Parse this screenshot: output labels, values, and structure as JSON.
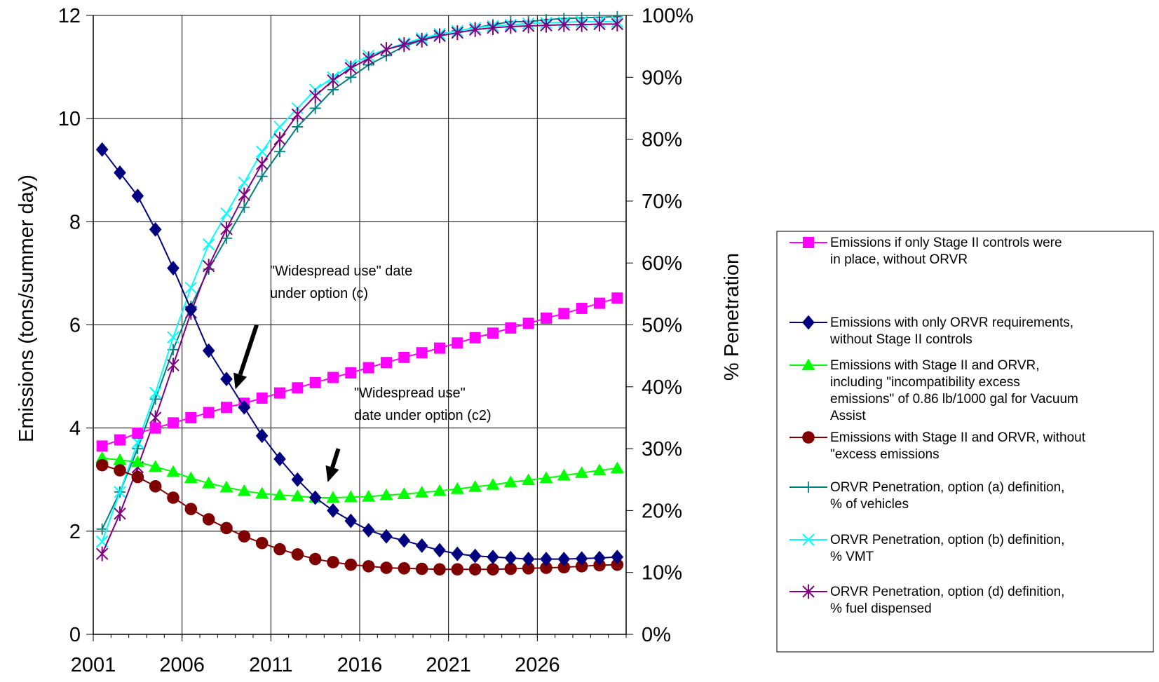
{
  "chart_data": {
    "type": "line",
    "title": "",
    "ylabel": "Emissions (tons/summer day)",
    "ylabel_right": "% Penetration",
    "xlim": [
      2001,
      2031
    ],
    "ylim": [
      0,
      12
    ],
    "ylim_right": [
      0,
      100
    ],
    "x_ticks": [
      "2001",
      "2006",
      "2011",
      "2016",
      "2021",
      "2026"
    ],
    "y_ticks": [
      "0",
      "2",
      "4",
      "6",
      "8",
      "10",
      "12"
    ],
    "y_ticks_right": [
      "0%",
      "10%",
      "20%",
      "30%",
      "40%",
      "50%",
      "60%",
      "70%",
      "80%",
      "90%",
      "100%"
    ],
    "grid": "horizontal and vertical",
    "legend_position": "right",
    "x": [
      2001,
      2002,
      2003,
      2004,
      2005,
      2006,
      2007,
      2008,
      2009,
      2010,
      2011,
      2012,
      2013,
      2014,
      2015,
      2016,
      2017,
      2018,
      2019,
      2020,
      2021,
      2022,
      2023,
      2024,
      2025,
      2026,
      2027,
      2028,
      2029,
      2030
    ],
    "series": [
      {
        "name": "Emissions if only Stage II controls were in place, without ORVR",
        "axis": "left",
        "color": "#ff00ff",
        "marker": "square",
        "values": [
          3.65,
          3.77,
          3.9,
          4.0,
          4.1,
          4.2,
          4.3,
          4.4,
          4.48,
          4.58,
          4.68,
          4.78,
          4.88,
          4.98,
          5.07,
          5.17,
          5.27,
          5.37,
          5.46,
          5.55,
          5.65,
          5.75,
          5.84,
          5.94,
          6.03,
          6.13,
          6.22,
          6.32,
          6.42,
          6.52
        ]
      },
      {
        "name": "Emissions with only ORVR requirements, without Stage II controls",
        "axis": "left",
        "color": "#000080",
        "marker": "diamond",
        "values": [
          9.4,
          8.95,
          8.5,
          7.85,
          7.1,
          6.3,
          5.5,
          4.95,
          4.4,
          3.85,
          3.4,
          3.0,
          2.65,
          2.4,
          2.2,
          2.02,
          1.9,
          1.82,
          1.72,
          1.63,
          1.56,
          1.52,
          1.5,
          1.48,
          1.46,
          1.46,
          1.46,
          1.47,
          1.48,
          1.5
        ]
      },
      {
        "name": "Emissions with Stage II and ORVR, including \"incompatibility excess emissions\" of 0.86 lb/1000 gal for Vacuum Assist",
        "axis": "left",
        "color": "#00ff00",
        "marker": "triangle",
        "values": [
          3.42,
          3.38,
          3.34,
          3.25,
          3.15,
          3.03,
          2.93,
          2.85,
          2.78,
          2.73,
          2.7,
          2.68,
          2.65,
          2.65,
          2.66,
          2.67,
          2.7,
          2.72,
          2.75,
          2.78,
          2.82,
          2.86,
          2.9,
          2.95,
          2.99,
          3.03,
          3.08,
          3.13,
          3.18,
          3.22
        ]
      },
      {
        "name": "Emissions with Stage II and ORVR, without \"excess emissions",
        "axis": "left",
        "color": "#800000",
        "marker": "circle",
        "values": [
          3.28,
          3.18,
          3.05,
          2.87,
          2.65,
          2.43,
          2.23,
          2.06,
          1.9,
          1.77,
          1.65,
          1.55,
          1.46,
          1.4,
          1.35,
          1.32,
          1.29,
          1.28,
          1.27,
          1.26,
          1.26,
          1.26,
          1.26,
          1.27,
          1.28,
          1.29,
          1.3,
          1.32,
          1.34,
          1.35
        ]
      },
      {
        "name": "ORVR Penetration, option (a) definition, % of vehicles",
        "axis": "right",
        "color": "#008080",
        "marker": "plus",
        "values": [
          17,
          23,
          30,
          38,
          46,
          53,
          59,
          64,
          69,
          74,
          78,
          82,
          85,
          88,
          90,
          92,
          93.5,
          95,
          96,
          97,
          97.5,
          98,
          98.5,
          99,
          99,
          99.3,
          99.5,
          99.6,
          99.7,
          99.8
        ]
      },
      {
        "name": "ORVR Penetration, option (b) definition, % VMT",
        "axis": "right",
        "color": "#00ffff",
        "marker": "x",
        "values": [
          15,
          23,
          31,
          39,
          48,
          56,
          63,
          68,
          73,
          78,
          82,
          85,
          88,
          90,
          92,
          93.5,
          94.5,
          95.5,
          96.3,
          97,
          97.5,
          98,
          98.3,
          98.5,
          98.7,
          98.8,
          98.9,
          99,
          99,
          99
        ]
      },
      {
        "name": "ORVR Penetration, option (d) definition, % fuel dispensed",
        "axis": "right",
        "color": "#800080",
        "marker": "star",
        "values": [
          13,
          19.5,
          27,
          35,
          43.5,
          52,
          59.5,
          65.5,
          71,
          76,
          80,
          84,
          87,
          89.5,
          91.5,
          93,
          94.5,
          95.3,
          96,
          96.7,
          97.2,
          97.7,
          98,
          98.2,
          98.3,
          98.4,
          98.5,
          98.5,
          98.6,
          98.6
        ]
      }
    ],
    "annotations": [
      {
        "lines": [
          "\"Widespread use\" date",
          "under option (c)"
        ],
        "arrow_from": [
          2010.2,
          6.0
        ],
        "arrow_to": [
          2009,
          4.75
        ]
      },
      {
        "lines": [
          "\"Widespread use\"",
          "date under option (c2)"
        ],
        "arrow_from": [
          2014.8,
          3.6
        ],
        "arrow_to": [
          2014.2,
          2.95
        ]
      }
    ]
  }
}
